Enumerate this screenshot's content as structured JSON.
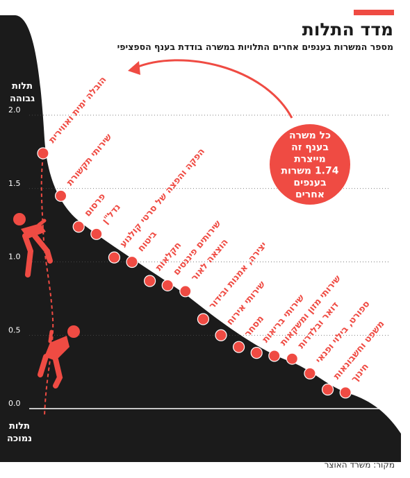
{
  "header": {
    "title": "מדד התלות",
    "subtitle": "מספר המשרות בענפים אחרים התלויות במשרה בודדת בענף הספציפי"
  },
  "source": "מקור: משרד האוצר",
  "colors": {
    "accent": "#ef4b43",
    "dark": "#1b1b1b",
    "text_light": "#ffffff"
  },
  "icons": [
    "climber-high-icon",
    "climber-low-icon"
  ],
  "annotation": {
    "lines": [
      "כל משרה",
      "בענף זה",
      "מייצרת",
      "1.74 משרות",
      "בענפים",
      "אחרים"
    ]
  },
  "chart_data": {
    "type": "scatter",
    "title": "מדד התלות",
    "ylim": [
      0,
      2.0
    ],
    "yticks": [
      "0.0",
      "0.5",
      "1.0",
      "1.5",
      "2.0"
    ],
    "ylabel_high": [
      "תלות",
      "גבוהה"
    ],
    "ylabel_low": [
      "תלות",
      "נמוכה"
    ],
    "categories": [
      "הובלה ימית ואווירית",
      "שירותי תקשורת",
      "פרסום",
      "נדל\"ן",
      "הפקה והפצה של סרטי קולנוע",
      "ביטוח",
      "חקלאות",
      "שירותים פיננסים",
      "הוצאה לאור",
      "יצירה, אמנות ובידור",
      "שירותי אירוח",
      "מסחר",
      "שירותי בריאות",
      "שירותי מזון ומשקאות",
      "דואר ובלדרות",
      "ספורט, בילוי ופנאי",
      "משפט וחשבונאות",
      "חינוך"
    ],
    "values": [
      1.74,
      1.45,
      1.24,
      1.19,
      1.03,
      1.0,
      0.87,
      0.84,
      0.8,
      0.61,
      0.5,
      0.42,
      0.38,
      0.36,
      0.34,
      0.24,
      0.13,
      0.11
    ]
  }
}
